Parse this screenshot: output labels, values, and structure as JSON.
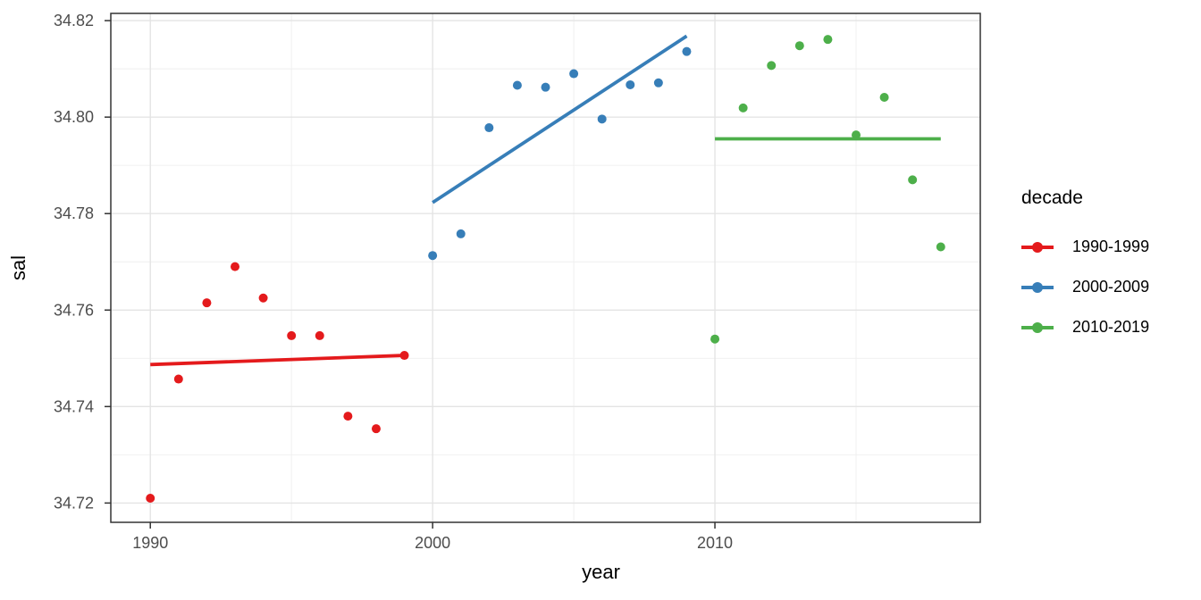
{
  "chart_data": {
    "type": "scatter",
    "title": "",
    "xlabel": "year",
    "ylabel": "sal",
    "grid": true,
    "legend": {
      "title": "decade",
      "position": "right"
    },
    "x_axis": {
      "range": [
        1988.6,
        2019.4
      ],
      "tick_values": [
        1990,
        2000,
        2010
      ],
      "tick_labels": [
        "1990",
        "2000",
        "2010"
      ],
      "minor_tick_values": [
        1995,
        2005,
        2015
      ]
    },
    "y_axis": {
      "range": [
        34.716,
        34.8215
      ],
      "tick_values": [
        34.72,
        34.74,
        34.76,
        34.78,
        34.8,
        34.82
      ],
      "tick_labels": [
        "34.72",
        "34.74",
        "34.76",
        "34.78",
        "34.80",
        "34.82"
      ],
      "minor_tick_values": [
        34.73,
        34.75,
        34.77,
        34.79,
        34.81
      ]
    },
    "series": [
      {
        "name": "1990-1999",
        "color": "#E41A1C",
        "points": [
          [
            1990,
            34.721
          ],
          [
            1991,
            34.7457
          ],
          [
            1992,
            34.7615
          ],
          [
            1993,
            34.769
          ],
          [
            1994,
            34.7625
          ],
          [
            1995,
            34.7547
          ],
          [
            1996,
            34.7547
          ],
          [
            1997,
            34.738
          ],
          [
            1998,
            34.7354
          ],
          [
            1999,
            34.7506
          ]
        ],
        "trend": [
          [
            1990,
            34.7487
          ],
          [
            1999,
            34.7506
          ]
        ]
      },
      {
        "name": "2000-2009",
        "color": "#377EB8",
        "points": [
          [
            2000,
            34.7713
          ],
          [
            2001,
            34.7758
          ],
          [
            2002,
            34.7978
          ],
          [
            2003,
            34.8066
          ],
          [
            2004,
            34.8062
          ],
          [
            2005,
            34.809
          ],
          [
            2006,
            34.7996
          ],
          [
            2007,
            34.8067
          ],
          [
            2008,
            34.8071
          ],
          [
            2009,
            34.8136
          ]
        ],
        "trend": [
          [
            2000,
            34.7823
          ],
          [
            2009,
            34.8168
          ]
        ]
      },
      {
        "name": "2010-2019",
        "color": "#4DAF4A",
        "points": [
          [
            2010,
            34.754
          ],
          [
            2011,
            34.8019
          ],
          [
            2012,
            34.8107
          ],
          [
            2013,
            34.8148
          ],
          [
            2014,
            34.8161
          ],
          [
            2015,
            34.7963
          ],
          [
            2016,
            34.8041
          ],
          [
            2017,
            34.787
          ],
          [
            2018,
            34.7731
          ]
        ],
        "trend": [
          [
            2010,
            34.7955
          ],
          [
            2018,
            34.7955
          ]
        ]
      }
    ],
    "colors": {
      "panel_background": "#FFFFFF",
      "panel_border": "#333333",
      "major_gridline": "#E4E4E4",
      "minor_gridline": "#EFEFEF",
      "tick_mark": "#333333",
      "tick_label": "#4D4D4D",
      "axis_title": "#000000"
    }
  }
}
